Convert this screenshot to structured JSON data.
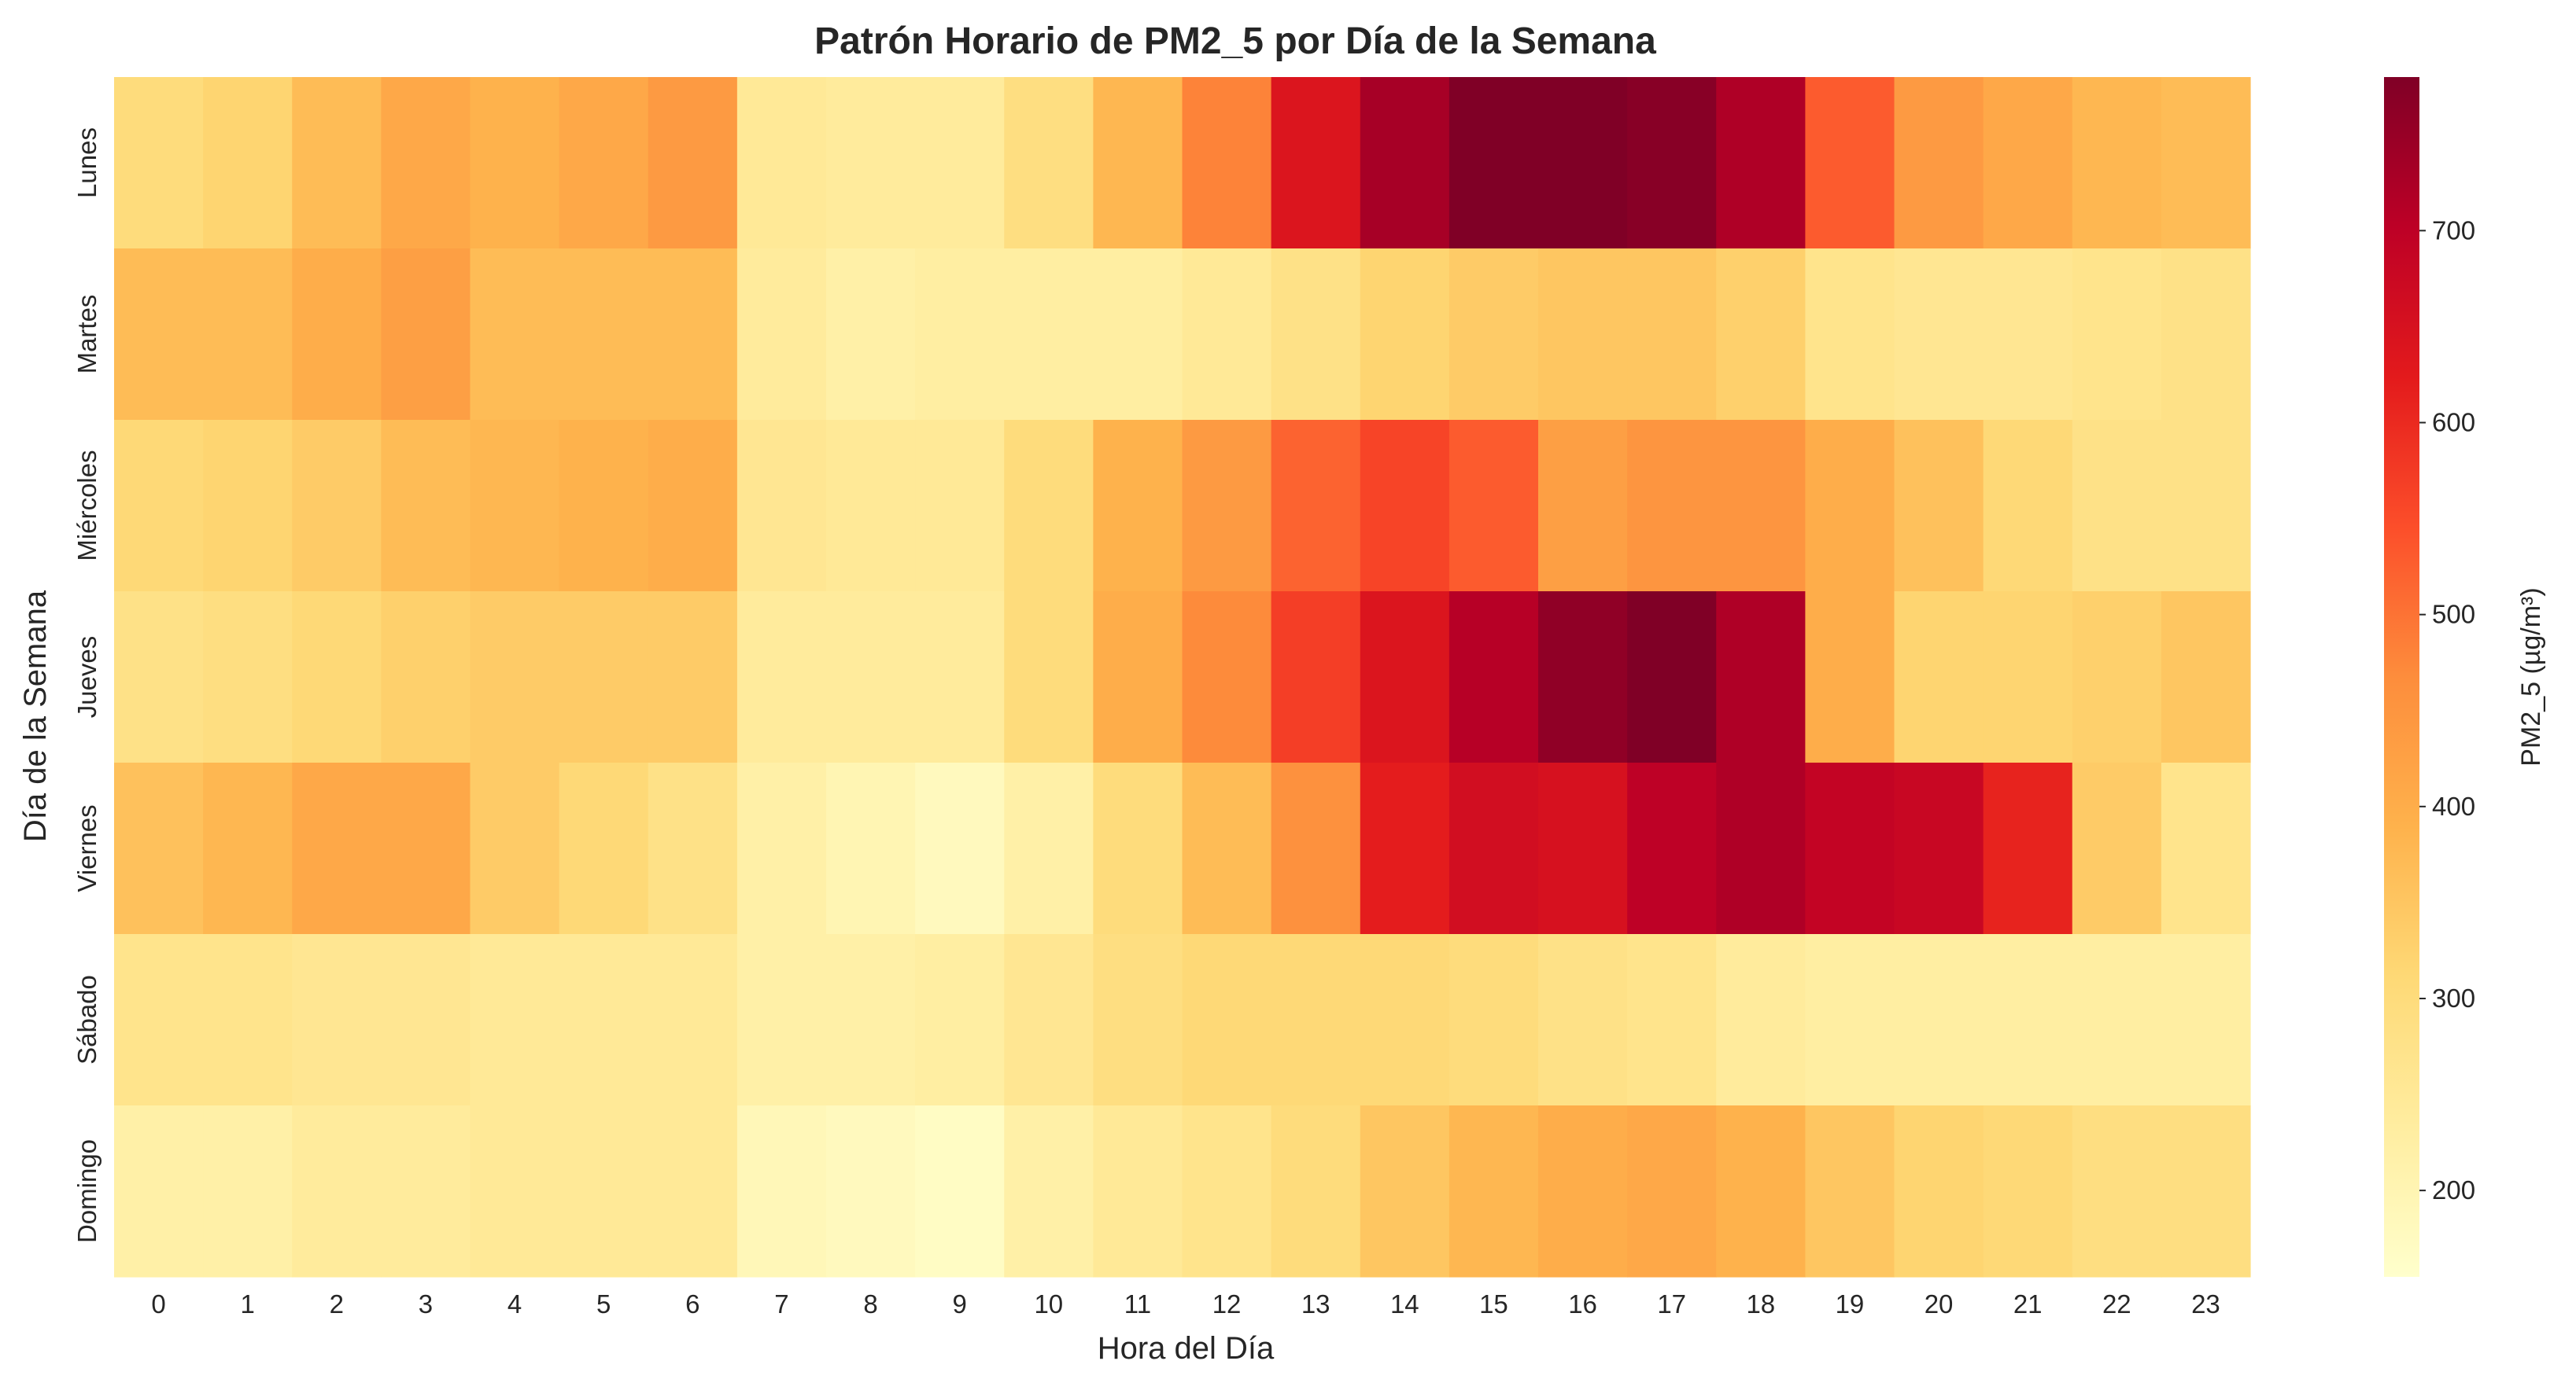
{
  "chart_data": {
    "type": "heatmap",
    "title": "Patrón Horario de PM2_5 por Día de la Semana",
    "xlabel": "Hora del Día",
    "ylabel": "Día de la Semana",
    "x_categories": [
      "0",
      "1",
      "2",
      "3",
      "4",
      "5",
      "6",
      "7",
      "8",
      "9",
      "10",
      "11",
      "12",
      "13",
      "14",
      "15",
      "16",
      "17",
      "18",
      "19",
      "20",
      "21",
      "22",
      "23"
    ],
    "y_categories": [
      "Lunes",
      "Martes",
      "Miércoles",
      "Jueves",
      "Viernes",
      "Sábado",
      "Domingo"
    ],
    "values": [
      [
        300,
        320,
        370,
        410,
        390,
        410,
        440,
        250,
        240,
        240,
        290,
        380,
        480,
        640,
        730,
        780,
        780,
        770,
        720,
        530,
        440,
        410,
        380,
        370
      ],
      [
        370,
        370,
        400,
        430,
        370,
        370,
        370,
        240,
        220,
        230,
        230,
        230,
        250,
        280,
        320,
        340,
        350,
        350,
        330,
        270,
        260,
        260,
        270,
        280
      ],
      [
        310,
        320,
        340,
        370,
        380,
        390,
        400,
        260,
        250,
        250,
        300,
        390,
        440,
        520,
        560,
        530,
        430,
        450,
        450,
        400,
        360,
        310,
        280,
        280
      ],
      [
        280,
        290,
        310,
        330,
        340,
        340,
        340,
        240,
        240,
        240,
        300,
        400,
        470,
        570,
        640,
        710,
        760,
        780,
        720,
        400,
        320,
        320,
        330,
        350
      ],
      [
        360,
        380,
        410,
        410,
        340,
        310,
        280,
        220,
        200,
        180,
        220,
        300,
        370,
        460,
        620,
        660,
        650,
        700,
        720,
        690,
        680,
        610,
        340,
        270
      ],
      [
        270,
        270,
        260,
        260,
        250,
        250,
        250,
        220,
        220,
        230,
        260,
        290,
        310,
        310,
        310,
        300,
        280,
        270,
        240,
        230,
        230,
        230,
        230,
        230
      ],
      [
        220,
        220,
        240,
        240,
        250,
        250,
        250,
        190,
        180,
        170,
        220,
        250,
        270,
        300,
        350,
        380,
        400,
        410,
        390,
        350,
        320,
        310,
        290,
        290
      ]
    ],
    "colorbar": {
      "label": "PM2_5 (µg/m³)",
      "range": [
        155,
        780
      ],
      "ticks": [
        200,
        300,
        400,
        500,
        600,
        700
      ]
    },
    "colormap": "YlOrRd",
    "grid": false
  }
}
